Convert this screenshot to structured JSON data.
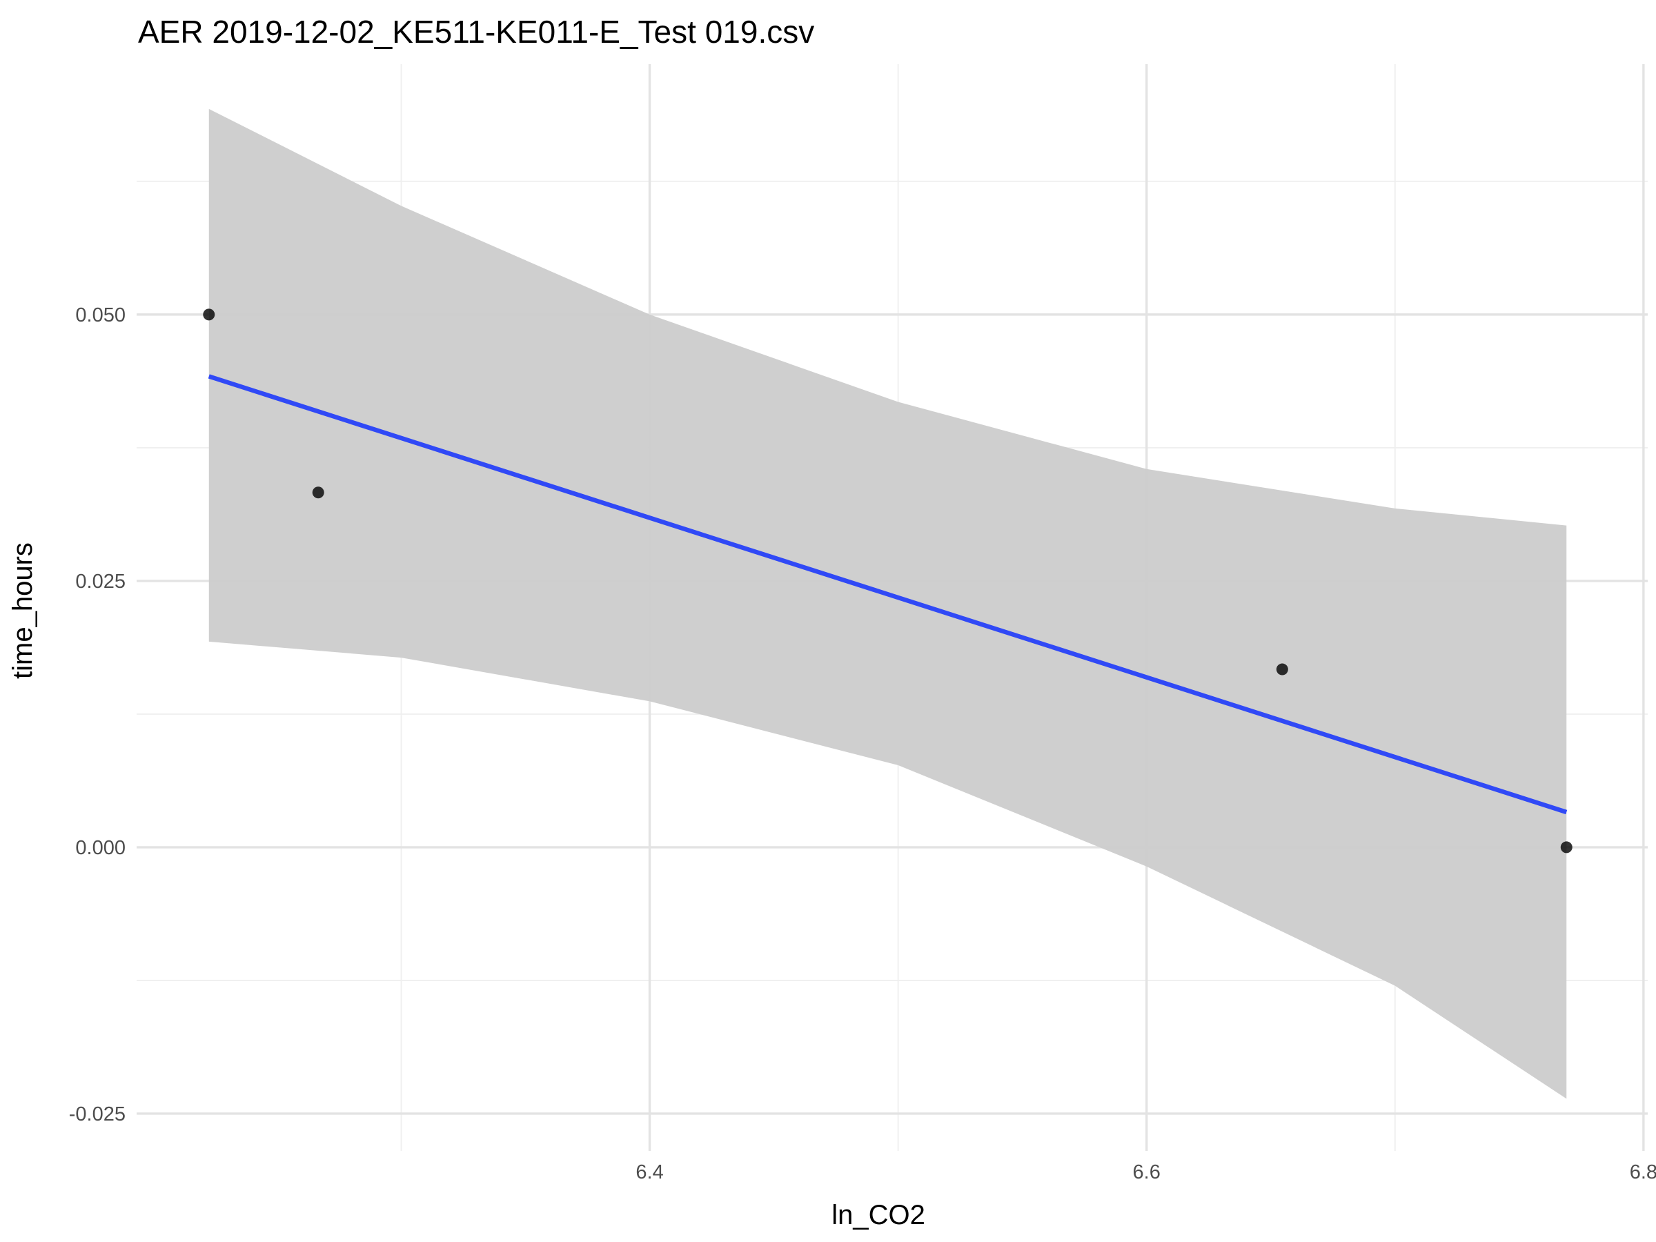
{
  "chart_data": {
    "type": "scatter",
    "title": "AER 2019-12-02_KE511-KE011-E_Test 019.csv",
    "xlabel": "ln_CO2",
    "ylabel": "time_hours",
    "xlim": [
      6.1935,
      6.8017
    ],
    "ylim": [
      -0.0285,
      0.0735
    ],
    "x_ticks": [
      6.4,
      6.6,
      6.8
    ],
    "x_tick_labels": [
      "6.4",
      "6.6",
      "6.8"
    ],
    "x_minor_ticks": [
      6.3,
      6.5,
      6.7
    ],
    "y_ticks": [
      -0.025,
      0.0,
      0.025,
      0.05
    ],
    "y_tick_labels": [
      "-0.025",
      "0.000",
      "0.025",
      "0.050"
    ],
    "y_minor_ticks": [
      -0.0125,
      0.0125,
      0.0375,
      0.0625
    ],
    "grid": true,
    "points": {
      "x": [
        6.2226,
        6.2666,
        6.6546,
        6.769
      ],
      "y": [
        0.05,
        0.0333,
        0.0167,
        0.0
      ]
    },
    "fit": {
      "method": "linear regression with confidence band",
      "x": [
        6.2226,
        6.769
      ],
      "y": [
        0.0442,
        0.0033
      ],
      "band": {
        "x": [
          6.2226,
          6.3,
          6.4,
          6.5,
          6.6,
          6.7,
          6.769
        ],
        "upper": [
          0.0693,
          0.0602,
          0.05,
          0.0418,
          0.0355,
          0.0318,
          0.0302
        ],
        "lower": [
          0.0193,
          0.0178,
          0.0137,
          0.0077,
          -0.0018,
          -0.013,
          -0.0236
        ]
      }
    },
    "colors": {
      "fit_line": "#3049f6",
      "band": "#cccccc",
      "points": "#000000",
      "grid": "#e3e3e3"
    }
  }
}
